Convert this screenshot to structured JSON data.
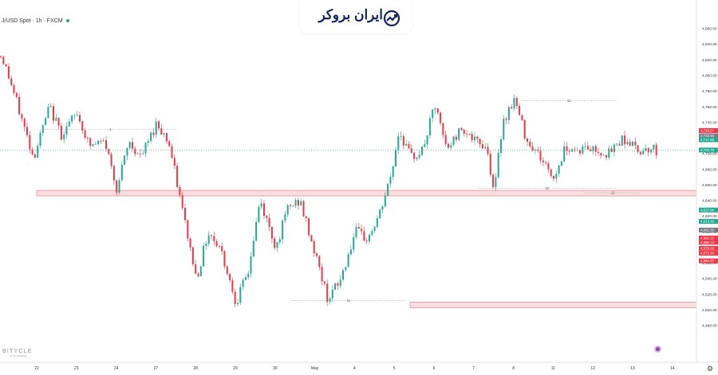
{
  "header": {
    "symbol_line": "J/USD Spot · 1h · FXCM"
  },
  "brand": {
    "name": "ایران بروکر"
  },
  "watermark": {
    "name": "BITYCLE",
    "tagline": "EXCHANGE"
  },
  "icons": {
    "logo": "broker-chart-logo-icon",
    "settings": "gear-icon",
    "indicator": "purple-dot-icon"
  },
  "colors": {
    "up": "#22ab94",
    "down": "#f23645",
    "zone_fill": "#fbdde0",
    "zone_border": "#f28f99",
    "current_line": "#22ab94"
  },
  "chart_data": {
    "type": "candlestick",
    "title": "",
    "x_tick_labels": [
      "22",
      "23",
      "24",
      "27",
      "28",
      "29",
      "30",
      "May",
      "4",
      "5",
      "6",
      "7",
      "8",
      "11",
      "12",
      "13",
      "14"
    ],
    "y_ticks": [
      4480,
      4500,
      4520,
      4540,
      4560,
      4580,
      4600,
      4620,
      4640,
      4660,
      4680,
      4700,
      4720,
      4740,
      4760,
      4780,
      4800,
      4820,
      4840,
      4860
    ],
    "y_tick_labels": [
      "4,480.00",
      "4,500.00",
      "4,520.00",
      "4,540.00",
      "4,560.00",
      "4,580.00",
      "4,600.00",
      "4,620.00",
      "4,640.00",
      "4,660.00",
      "4,680.00",
      "4,700.00",
      "4,720.00",
      "4,740.00",
      "4,760.00",
      "4,780.00",
      "4,800.00",
      "4,820.00",
      "4,840.00",
      "4,860.00"
    ],
    "ylim": [
      4470,
      4870
    ],
    "current_price": 4704.7,
    "price_tags": [
      {
        "value": 4729.67,
        "label": "4,729.67",
        "color": "#f23645"
      },
      {
        "value": 4722.93,
        "label": "4,722.93",
        "color": "#787b86"
      },
      {
        "value": 4717.83,
        "label": "4,717.83",
        "color": "#22ab94"
      },
      {
        "value": 4704.7,
        "label": "4,704.70",
        "color": "#22ab94"
      },
      {
        "value": 4627.94,
        "label": "4,627.94",
        "color": "#22ab94"
      },
      {
        "value": 4613.42,
        "label": "4,613.42",
        "color": "#22ab94"
      },
      {
        "value": 4602.3,
        "label": "4,602.30",
        "color": "#787b86"
      },
      {
        "value": 4592.15,
        "label": "4,592.15",
        "color": "#f23645"
      },
      {
        "value": 4586.73,
        "label": "4,586.73",
        "color": "#f23645"
      },
      {
        "value": 4578.92,
        "label": "4,578.92",
        "color": "#f23645"
      },
      {
        "value": 4572.64,
        "label": "4,572.64",
        "color": "#f23645"
      },
      {
        "value": 4562.87,
        "label": "4,562.87",
        "color": "#f23645"
      }
    ],
    "zones": [
      {
        "from_day": 0,
        "to_day": 17.3,
        "low": 4646,
        "high": 4653
      },
      {
        "from_day": 9.4,
        "to_day": 17.3,
        "low": 4503,
        "high": 4510
      }
    ],
    "dotted_levels": [
      {
        "from_day": 0.2,
        "to_day": 3.5,
        "value": 4731,
        "label": "1"
      },
      {
        "from_day": 6.4,
        "to_day": 9.3,
        "value": 4512,
        "label": "11"
      },
      {
        "from_day": 11.1,
        "to_day": 14.6,
        "value": 4656,
        "label": "11"
      },
      {
        "from_day": 12.2,
        "to_day": 14.6,
        "value": 4768,
        "label": "11"
      },
      {
        "from_day": 13.8,
        "to_day": 15.2,
        "value": 4650,
        "label": "11"
      }
    ],
    "days": [
      0,
      1,
      2,
      3,
      4,
      5,
      6,
      7,
      8,
      9,
      10,
      11,
      12,
      13,
      14,
      15,
      16
    ],
    "path_day": [
      -0.9,
      -0.7,
      -0.4,
      -0.1,
      0.3,
      0.6,
      1.0,
      1.3,
      1.7,
      2.0,
      2.3,
      2.6,
      3.0,
      3.3,
      3.6,
      4.0,
      4.3,
      4.6,
      5.0,
      5.3,
      5.6,
      6.0,
      6.3,
      6.6,
      7.0,
      7.3,
      7.6,
      8.0,
      8.3,
      8.6,
      8.9,
      9.1,
      9.4,
      9.7,
      10.0,
      10.3,
      10.7,
      11.0,
      11.3,
      11.5,
      11.7,
      12.0,
      12.3,
      12.6,
      13.0,
      13.3,
      13.6,
      13.8,
      14.1,
      14.4,
      14.7,
      14.9,
      15.1,
      15.4,
      15.6
    ],
    "path_price": [
      4825,
      4795,
      4745,
      4695,
      4760,
      4725,
      4752,
      4710,
      4715,
      4655,
      4715,
      4695,
      4740,
      4715,
      4640,
      4540,
      4600,
      4580,
      4510,
      4548,
      4640,
      4580,
      4630,
      4640,
      4570,
      4515,
      4535,
      4600,
      4590,
      4620,
      4672,
      4730,
      4695,
      4705,
      4762,
      4705,
      4735,
      4715,
      4710,
      4650,
      4740,
      4770,
      4720,
      4700,
      4668,
      4710,
      4704,
      4708,
      4704,
      4700,
      4720,
      4715,
      4704,
      4708,
      4704
    ]
  }
}
